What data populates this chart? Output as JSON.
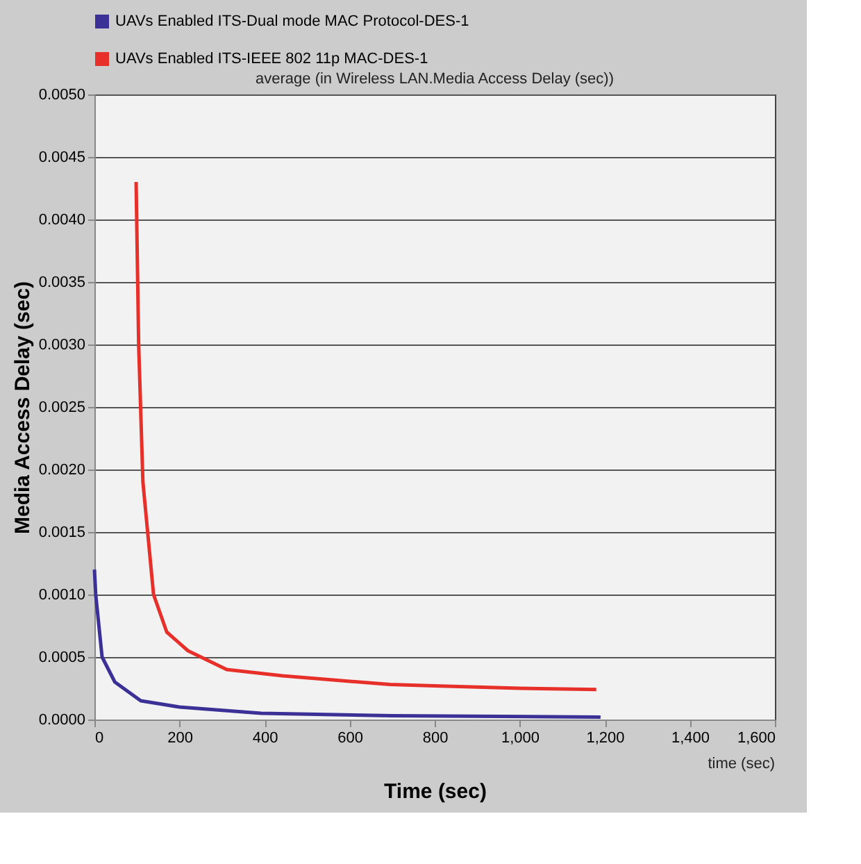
{
  "chart_data": {
    "type": "line",
    "title": "average (in Wireless LAN.Media Access Delay (sec))",
    "xlabel": "Time (sec)",
    "ylabel": "Media Access Delay (sec)",
    "annotations": [
      "time (sec)"
    ],
    "series": [
      {
        "name": "UAVs Enabled ITS-Dual mode MAC Protocol-DES-1",
        "color": "#3a3096",
        "x": [
          0,
          3,
          18,
          48,
          109,
          200,
          392,
          700,
          1190
        ],
        "values": [
          0.0012,
          0.001,
          0.0005,
          0.0003,
          0.00015,
          0.0001,
          5e-05,
          3e-05,
          2e-05
        ]
      },
      {
        "name": "UAVs Enabled ITS-IEEE 802 11p MAC-DES-1",
        "color": "#e8302a",
        "x": [
          98,
          104,
          114,
          139,
          170,
          220,
          311,
          442,
          695,
          800,
          1000,
          1180
        ],
        "values": [
          0.0043,
          0.003,
          0.0019,
          0.001,
          0.0007,
          0.00055,
          0.0004,
          0.00035,
          0.00028,
          0.00027,
          0.00025,
          0.00024
        ]
      }
    ],
    "xlim": [
      0,
      1600
    ],
    "xticks": [
      0,
      200,
      400,
      600,
      800,
      {
        "value": 1000,
        "label": "1,000"
      },
      {
        "value": 1200,
        "label": "1,200"
      },
      {
        "value": 1400,
        "label": "1,400"
      },
      {
        "value": 1600,
        "label": "1,600"
      }
    ],
    "ylim": [
      0,
      0.005
    ],
    "yticks": [
      {
        "value": 0,
        "label": "0.0000"
      },
      {
        "value": 0.0005,
        "label": "0.0005"
      },
      {
        "value": 0.001,
        "label": "0.0010"
      },
      {
        "value": 0.0015,
        "label": "0.0015"
      },
      {
        "value": 0.002,
        "label": "0.0020"
      },
      {
        "value": 0.0025,
        "label": "0.0025"
      },
      {
        "value": 0.003,
        "label": "0.0030"
      },
      {
        "value": 0.0035,
        "label": "0.0035"
      },
      {
        "value": 0.004,
        "label": "0.0040"
      },
      {
        "value": 0.0045,
        "label": "0.0045"
      },
      {
        "value": 0.005,
        "label": "0.0050"
      }
    ],
    "grid": "y",
    "legend": "top left",
    "marker": "none",
    "line_style": "solid"
  }
}
